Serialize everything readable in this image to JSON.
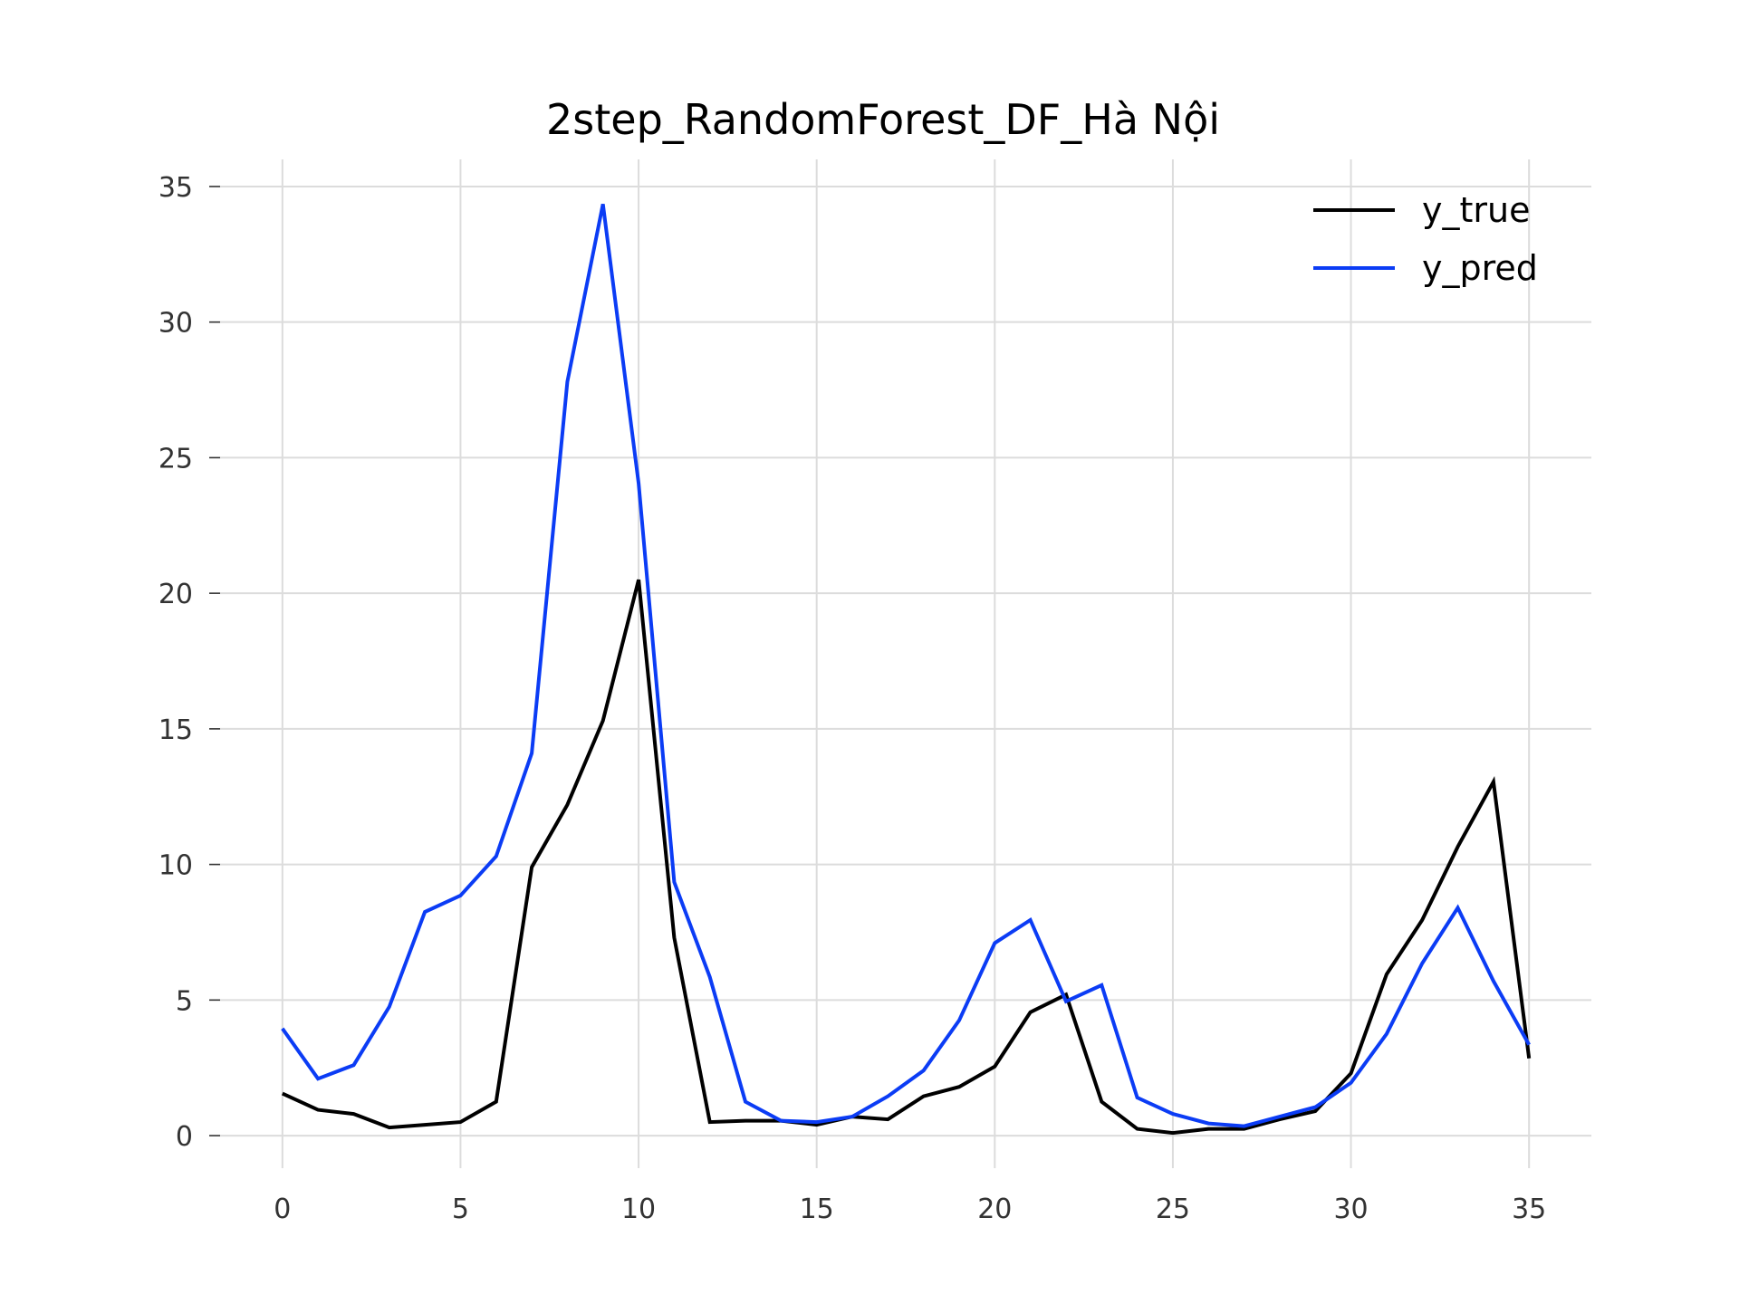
{
  "chart_data": {
    "type": "line",
    "title": "2step_RandomForest_DF_Hà Nội",
    "xlabel": "",
    "ylabel": "",
    "xlim": [
      -1.75,
      36.75
    ],
    "ylim": [
      -1.2,
      36
    ],
    "xticks": [
      0,
      5,
      10,
      15,
      20,
      25,
      30,
      35
    ],
    "yticks": [
      0,
      5,
      10,
      15,
      20,
      25,
      30,
      35
    ],
    "grid": true,
    "legend_position": "top-right",
    "x": [
      0,
      1,
      2,
      3,
      4,
      5,
      6,
      7,
      8,
      9,
      10,
      11,
      12,
      13,
      14,
      15,
      16,
      17,
      18,
      19,
      20,
      21,
      22,
      23,
      24,
      25,
      26,
      27,
      28,
      29,
      30,
      31,
      32,
      33,
      34,
      35
    ],
    "series": [
      {
        "name": "y_true",
        "color": "#000000",
        "values": [
          1.55,
          0.95,
          0.8,
          0.3,
          0.4,
          0.5,
          1.25,
          9.9,
          12.2,
          15.3,
          20.5,
          7.3,
          0.5,
          0.55,
          0.55,
          0.4,
          0.7,
          0.6,
          1.45,
          1.8,
          2.55,
          4.55,
          5.2,
          1.25,
          0.25,
          0.1,
          0.25,
          0.25,
          0.6,
          0.9,
          2.3,
          5.95,
          7.95,
          10.65,
          13.05,
          2.85
        ]
      },
      {
        "name": "y_pred",
        "color": "#0b3cf5",
        "values": [
          3.95,
          2.1,
          2.6,
          4.75,
          8.25,
          8.85,
          10.3,
          14.1,
          27.8,
          34.35,
          24.05,
          9.35,
          5.85,
          1.25,
          0.55,
          0.5,
          0.7,
          1.45,
          2.4,
          4.25,
          7.1,
          7.95,
          4.95,
          5.55,
          1.4,
          0.8,
          0.45,
          0.35,
          0.7,
          1.05,
          1.95,
          3.75,
          6.35,
          8.4,
          5.7,
          3.35
        ]
      }
    ]
  }
}
